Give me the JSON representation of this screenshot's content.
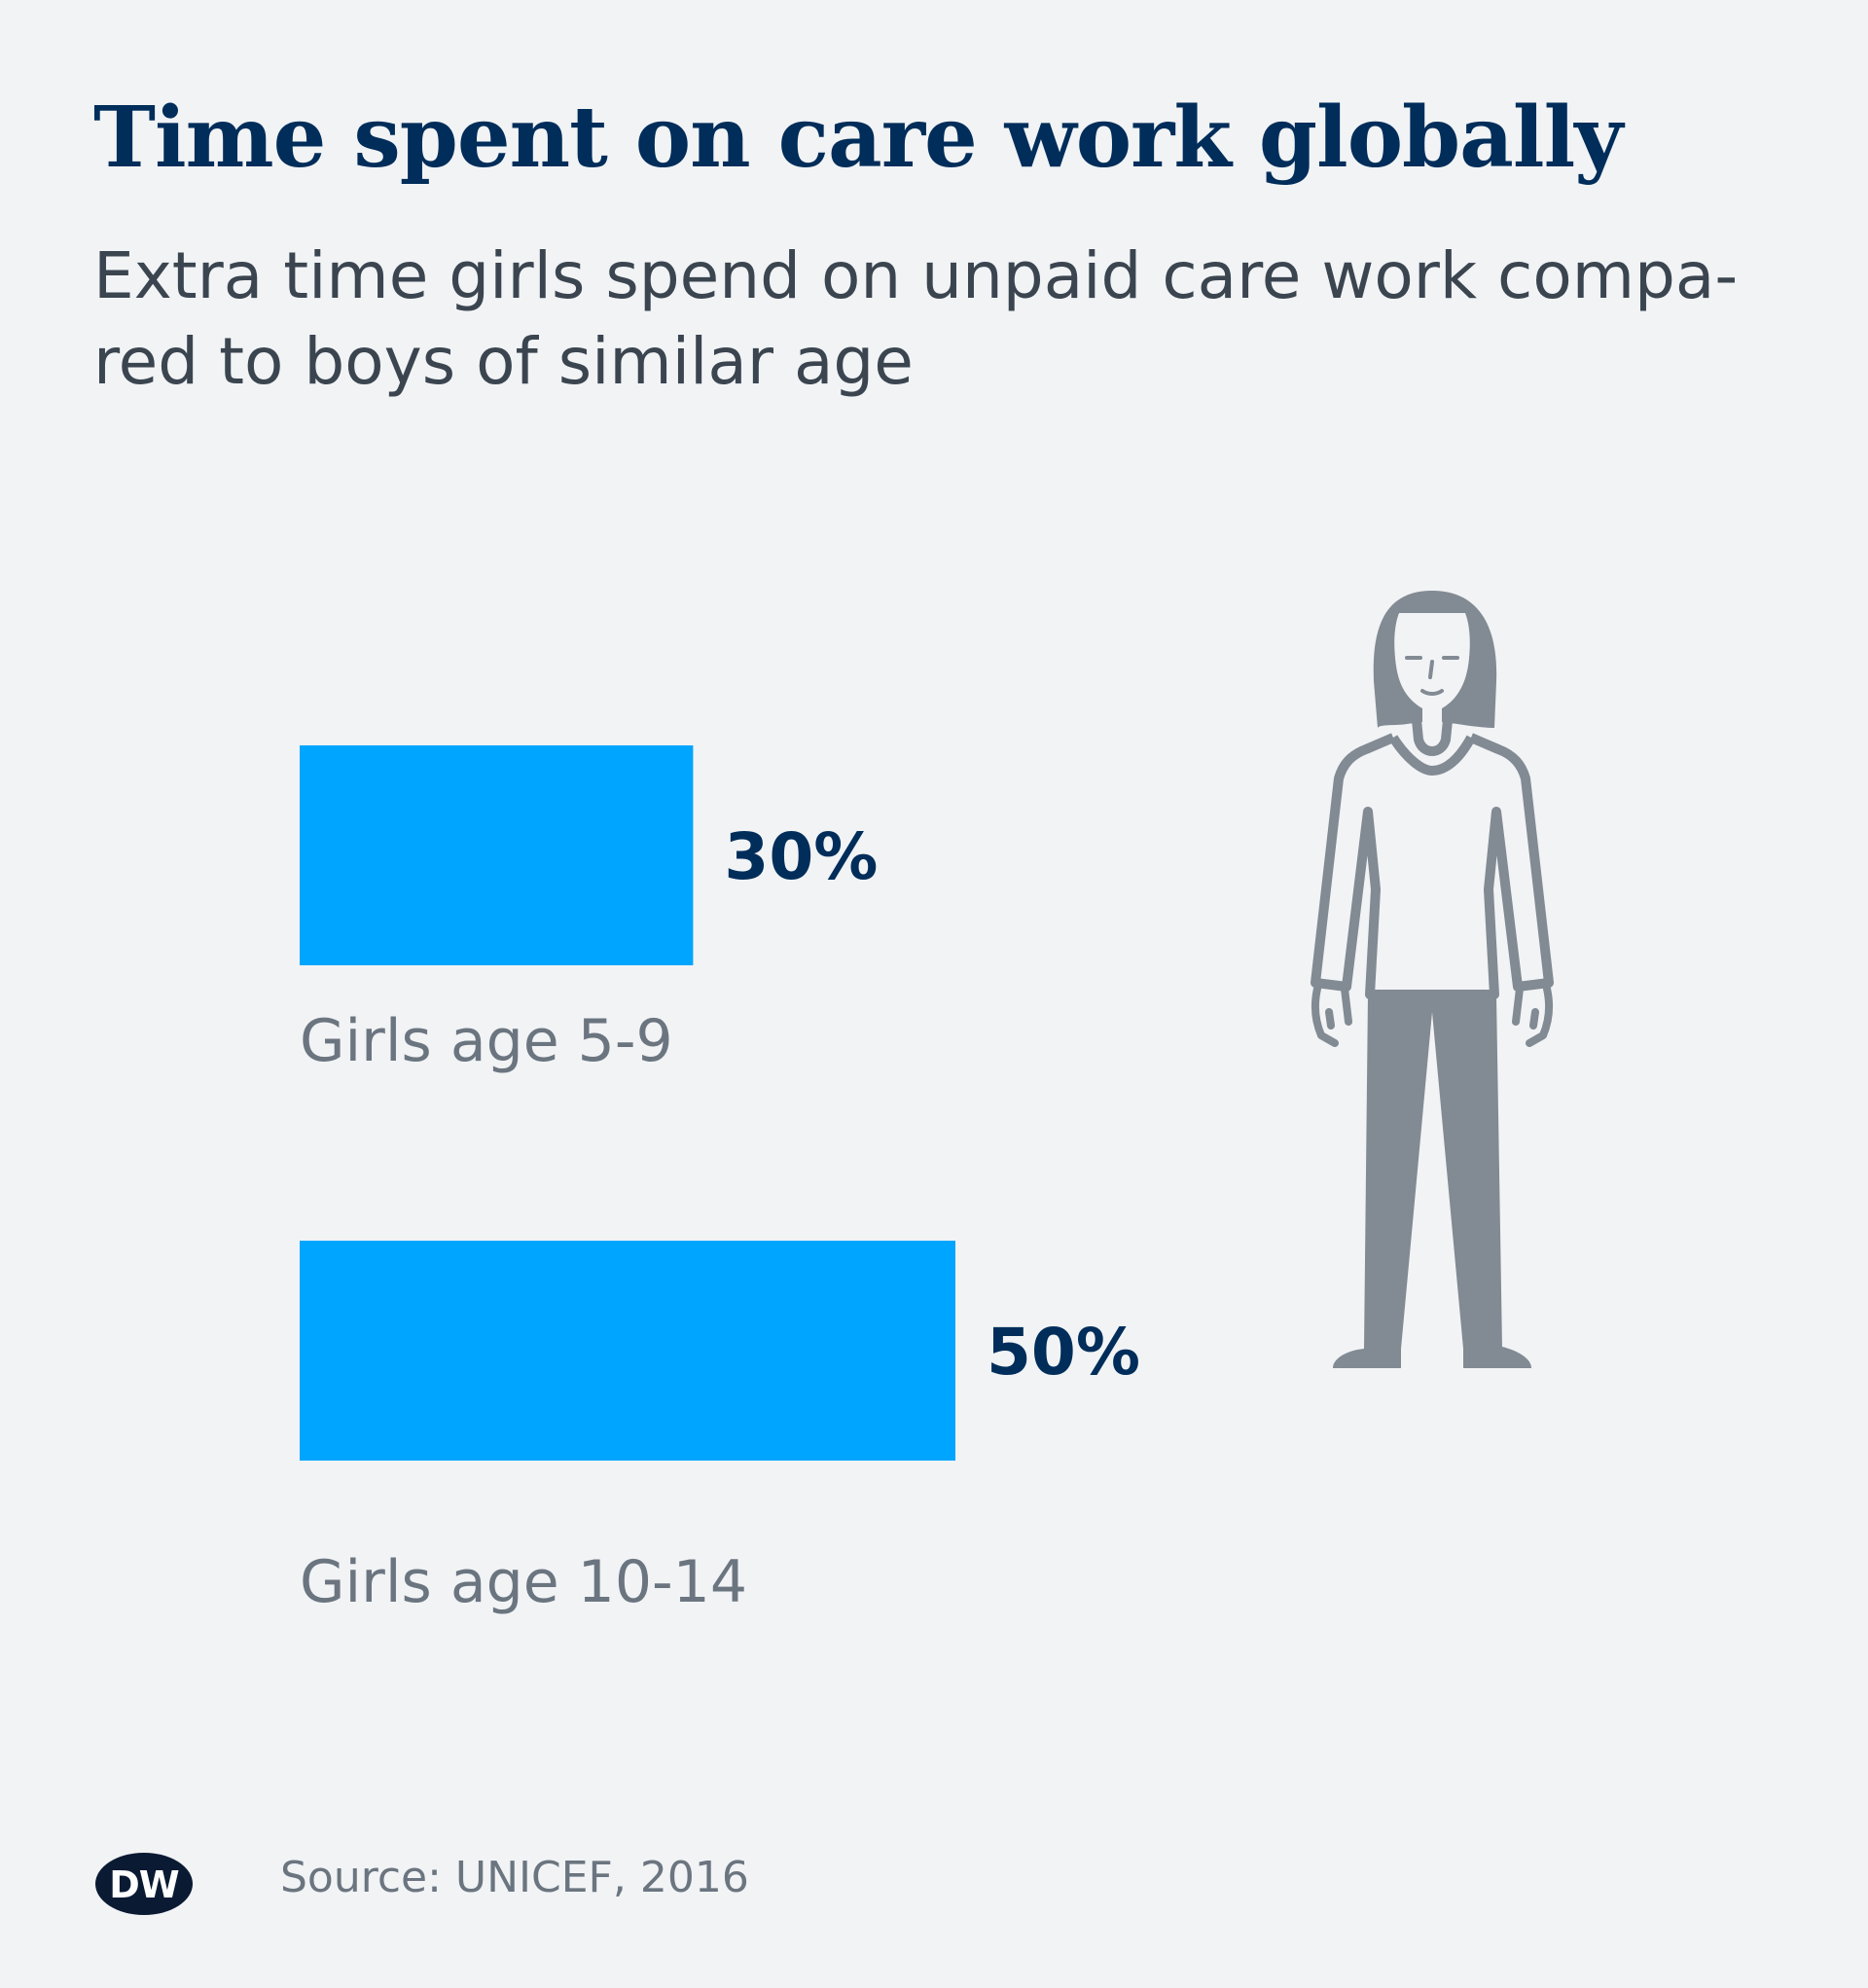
{
  "header": {
    "title": "Time spent on care work globally",
    "subtitle_line1": "Extra time girls spend on unpaid care work compa-",
    "subtitle_line2": "red to boys of similar age"
  },
  "chart_data": {
    "type": "bar",
    "orientation": "horizontal",
    "title": "Time spent on care work globally",
    "subtitle": "Extra time girls spend on unpaid care work compared to boys of similar age",
    "categories": [
      "Girls age 5-9",
      "Girls age 10-14"
    ],
    "values": [
      30,
      50
    ],
    "value_labels": [
      "30%",
      "50%"
    ],
    "unit": "%",
    "xlim": [
      0,
      50
    ],
    "grid": false,
    "legend": "none",
    "bar_color": "#00a5ff",
    "value_label_color": "#002d5a",
    "category_label_color": "#6b7580"
  },
  "illustration": {
    "icon": "girl-figure-icon",
    "color": "#828a93"
  },
  "footer": {
    "logo": "DW",
    "source": "Source: UNICEF, 2016"
  }
}
